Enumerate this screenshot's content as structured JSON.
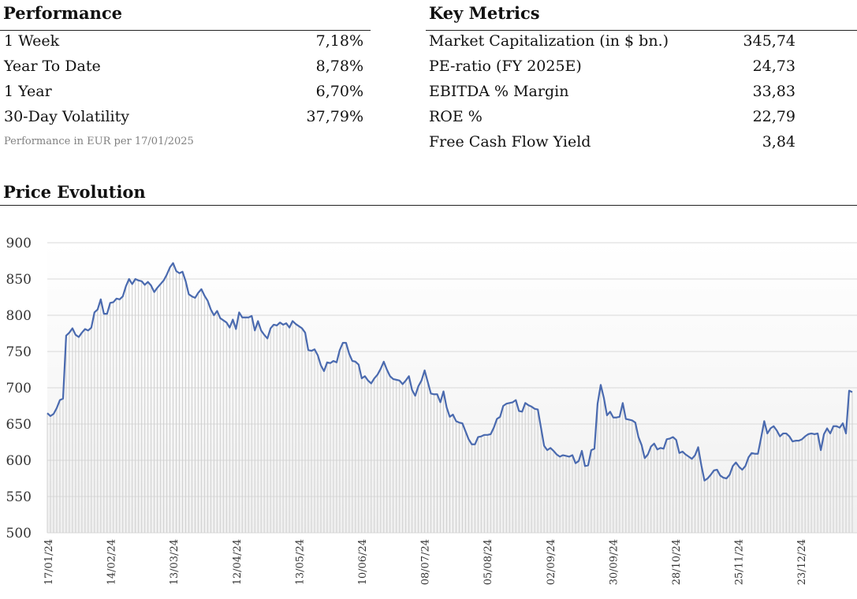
{
  "performance": {
    "title": "Performance",
    "rows": [
      {
        "label": "1 Week",
        "value": "7,18%"
      },
      {
        "label": "Year To Date",
        "value": "8,78%"
      },
      {
        "label": "1 Year",
        "value": "6,70%"
      },
      {
        "label": "30-Day Volatility",
        "value": "37,79%"
      }
    ],
    "note": "Performance in EUR per 17/01/2025"
  },
  "key_metrics": {
    "title": "Key Metrics",
    "rows": [
      {
        "label": "Market Capitalization (in $ bn.)",
        "value": "345,74"
      },
      {
        "label": "PE-ratio (FY 2025E)",
        "value": "24,73"
      },
      {
        "label": "EBITDA % Margin",
        "value": "33,83"
      },
      {
        "label": "ROE %",
        "value": "22,79"
      },
      {
        "label": "Free Cash Flow Yield",
        "value": "3,84"
      }
    ]
  },
  "price_evolution": {
    "title": "Price Evolution"
  },
  "colors": {
    "line": "#4a6aaf",
    "grid": "#d9d9d9",
    "fill": "#cfcfcf"
  },
  "chart_data": {
    "type": "area",
    "title": "",
    "xlabel": "",
    "ylabel": "",
    "ylim": [
      500,
      900
    ],
    "yticks": [
      500,
      550,
      600,
      650,
      700,
      750,
      800,
      850,
      900
    ],
    "grid": true,
    "legend": "none",
    "xtick_labels": [
      "17/01/24",
      "14/02/24",
      "13/03/24",
      "12/04/24",
      "13/05/24",
      "10/06/24",
      "08/07/24",
      "05/08/24",
      "02/09/24",
      "30/09/24",
      "28/10/24",
      "25/11/24",
      "23/12/24"
    ],
    "series": [
      {
        "values": [
          665,
          661,
          664,
          672,
          683,
          685,
          772,
          776,
          782,
          773,
          770,
          776,
          781,
          779,
          783,
          804,
          808,
          822,
          802,
          802,
          817,
          818,
          823,
          822,
          826,
          840,
          850,
          843,
          850,
          848,
          847,
          842,
          846,
          841,
          832,
          838,
          843,
          848,
          856,
          866,
          872,
          861,
          858,
          860,
          847,
          829,
          826,
          824,
          831,
          836,
          827,
          820,
          808,
          800,
          806,
          796,
          793,
          790,
          783,
          794,
          781,
          804,
          797,
          797,
          797,
          799,
          779,
          792,
          779,
          773,
          768,
          782,
          787,
          786,
          790,
          787,
          789,
          783,
          792,
          788,
          785,
          782,
          776,
          752,
          751,
          753,
          745,
          731,
          723,
          735,
          734,
          737,
          735,
          752,
          762,
          762,
          747,
          737,
          736,
          732,
          713,
          716,
          710,
          706,
          713,
          718,
          726,
          736,
          725,
          716,
          712,
          711,
          710,
          705,
          710,
          716,
          697,
          689,
          702,
          710,
          724,
          708,
          692,
          691,
          691,
          680,
          695,
          673,
          660,
          663,
          654,
          652,
          651,
          640,
          629,
          622,
          622,
          632,
          633,
          635,
          635,
          636,
          645,
          657,
          660,
          675,
          678,
          679,
          680,
          683,
          668,
          667,
          679,
          676,
          674,
          671,
          670,
          645,
          620,
          614,
          617,
          613,
          608,
          605,
          607,
          606,
          605,
          607,
          596,
          599,
          613,
          592,
          593,
          614,
          616,
          678,
          704,
          686,
          662,
          667,
          659,
          659,
          660,
          679,
          657,
          656,
          655,
          652,
          632,
          621,
          603,
          608,
          619,
          623,
          615,
          617,
          616,
          629,
          630,
          632,
          628,
          610,
          612,
          608,
          605,
          602,
          607,
          618,
          593,
          572,
          575,
          580,
          586,
          587,
          579,
          576,
          575,
          580,
          592,
          597,
          591,
          587,
          592,
          604,
          610,
          609,
          609,
          631,
          654,
          637,
          644,
          647,
          641,
          633,
          637,
          637,
          633,
          626,
          627,
          627,
          629,
          633,
          636,
          637,
          636,
          637,
          614,
          636,
          644,
          637,
          647,
          647,
          645,
          651,
          637,
          696,
          694
        ]
      }
    ]
  }
}
